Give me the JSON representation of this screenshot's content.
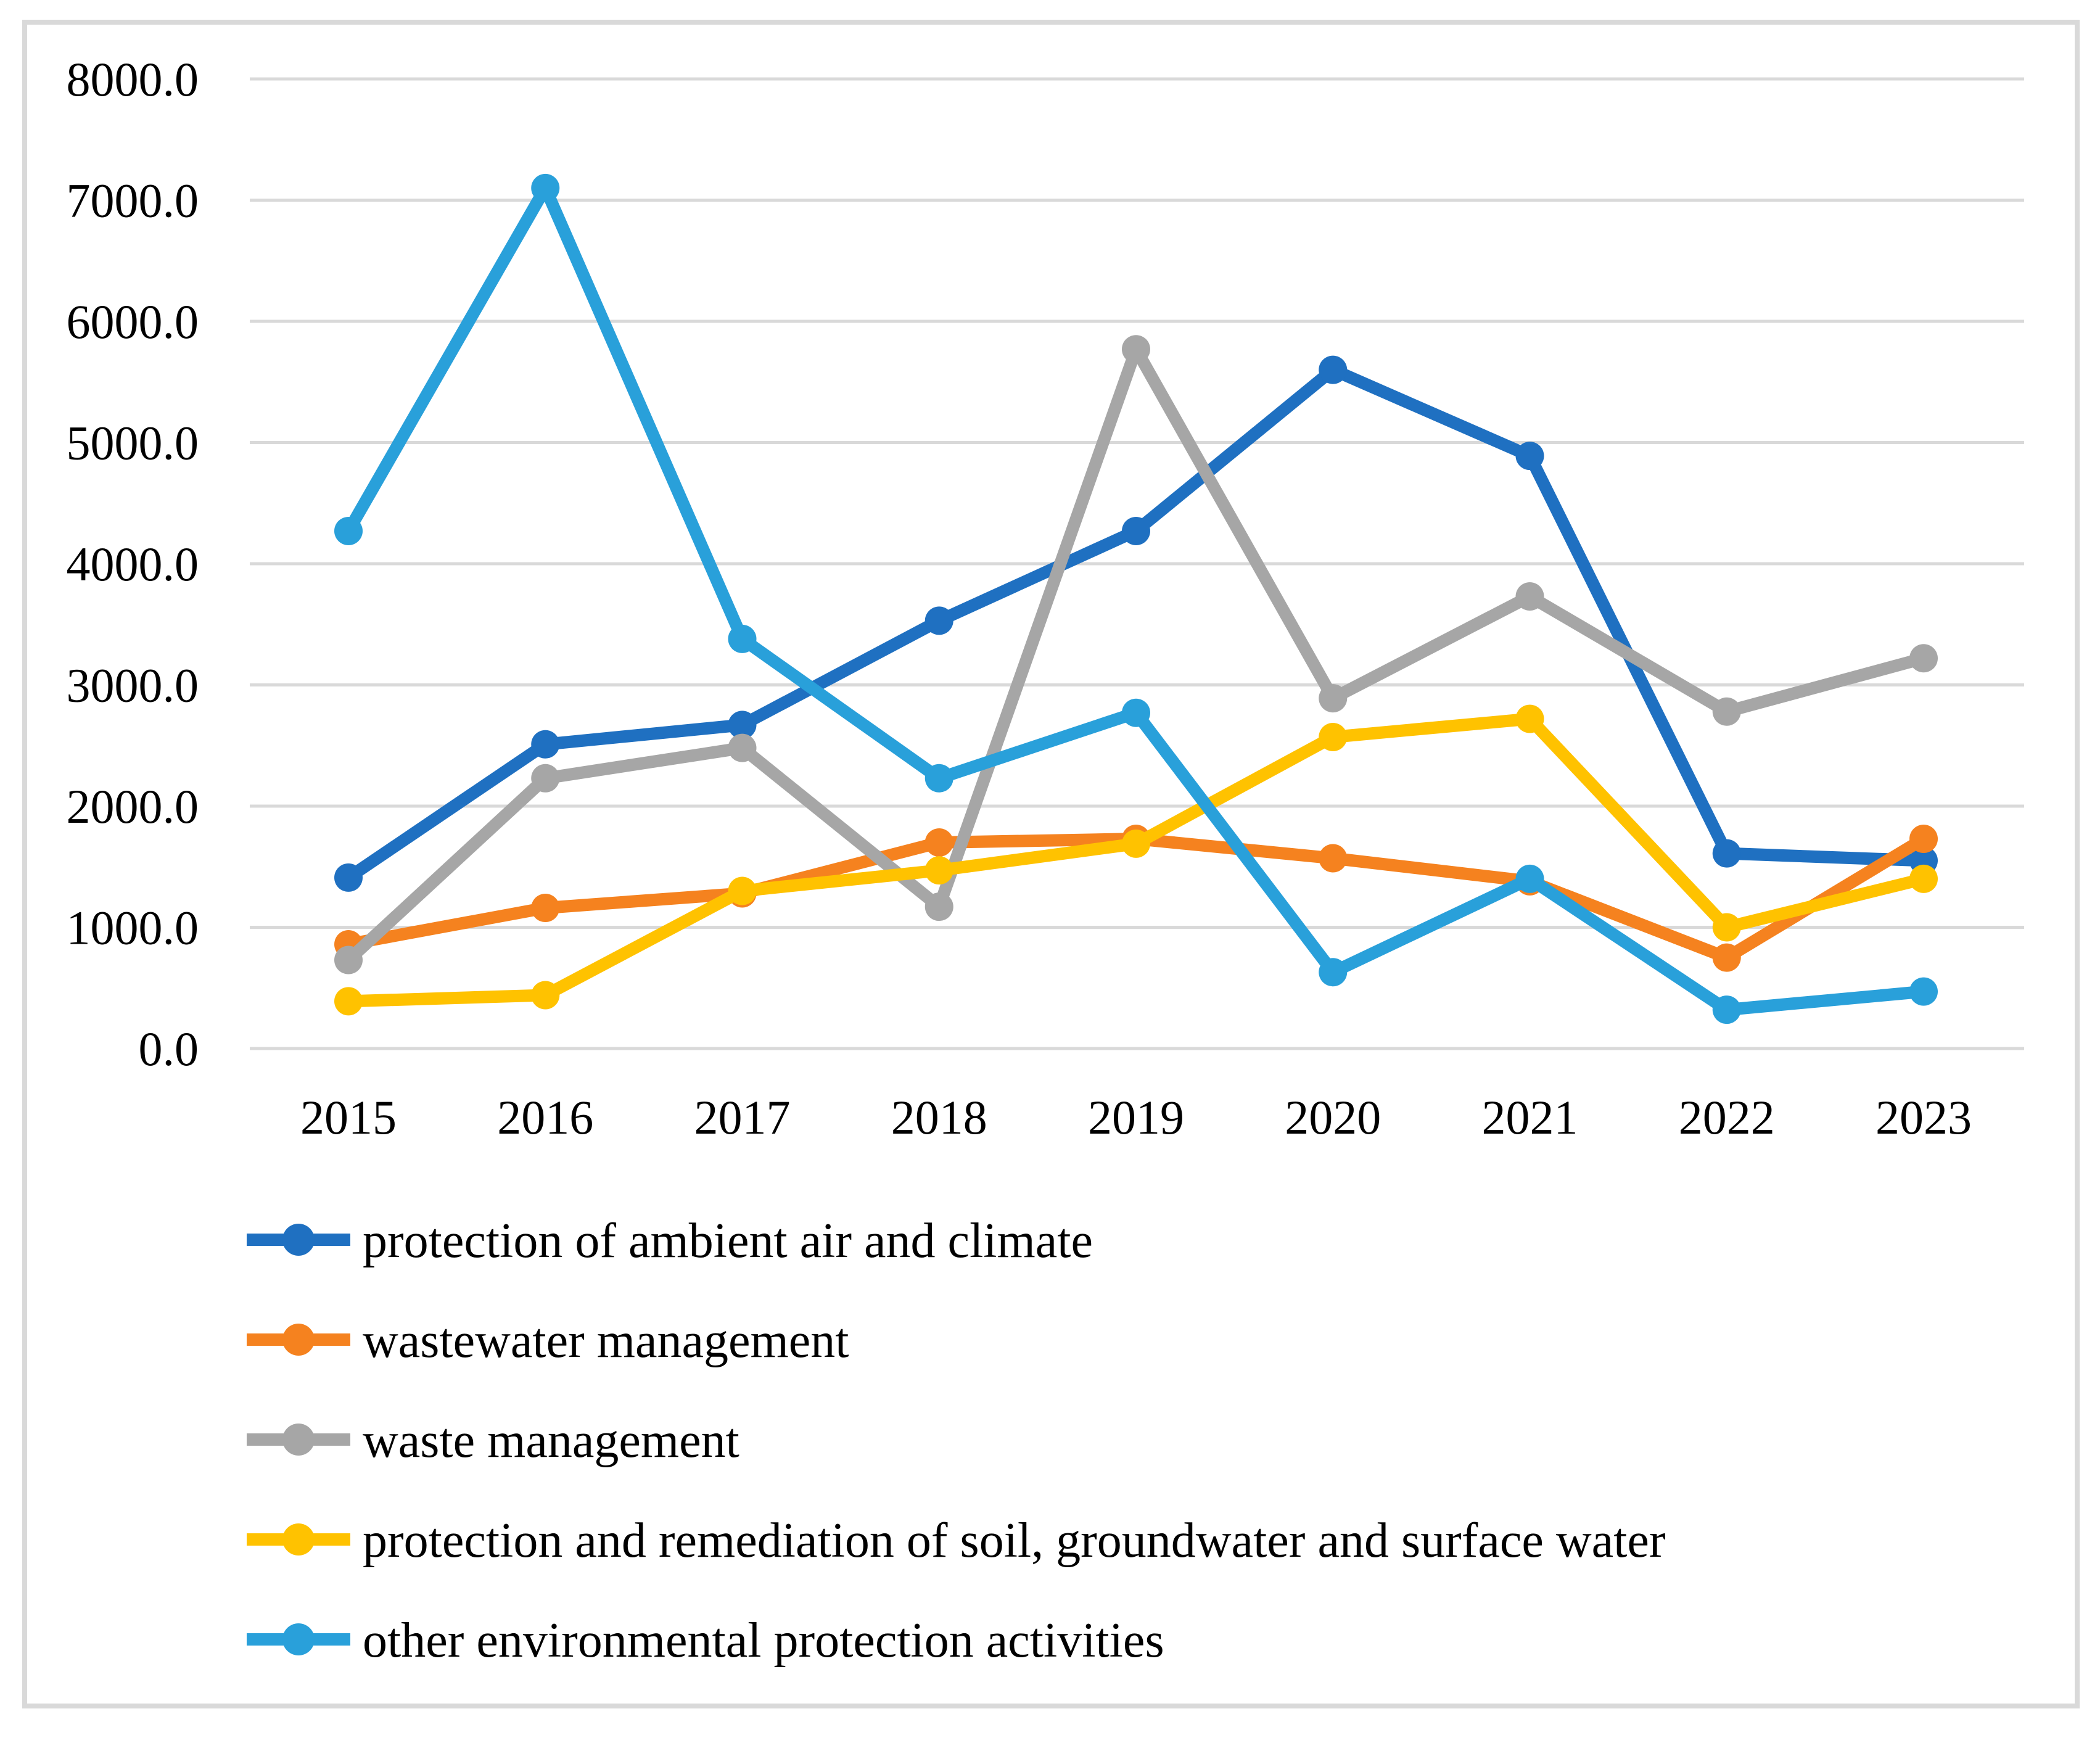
{
  "chart_data": {
    "type": "line",
    "title": "",
    "xlabel": "",
    "ylabel": "",
    "categories": [
      "2015",
      "2016",
      "2017",
      "2018",
      "2019",
      "2020",
      "2021",
      "2022",
      "2023"
    ],
    "series": [
      {
        "name": "protection of ambient air and climate",
        "slug": "ambient-air-and-climate",
        "color": "#1F70C1",
        "values": [
          1410,
          2510,
          2670,
          3530,
          4270,
          5600,
          4890,
          1610,
          1550
        ]
      },
      {
        "name": "wastewater management",
        "slug": "wastewater-management",
        "color": "#F5821F",
        "values": [
          860,
          1160,
          1280,
          1700,
          1730,
          1570,
          1380,
          750,
          1730
        ]
      },
      {
        "name": "waste management",
        "slug": "waste-management",
        "color": "#A6A6A6",
        "values": [
          730,
          2230,
          2480,
          1170,
          5770,
          2890,
          3730,
          2780,
          3220
        ]
      },
      {
        "name": "protection and remediation of soil, groundwater and surface water",
        "slug": "soil-groundwater-surface-water",
        "color": "#FFC200",
        "values": [
          390,
          440,
          1300,
          1470,
          1690,
          2570,
          2720,
          1000,
          1400
        ]
      },
      {
        "name": "other environmental protection activities",
        "slug": "other-environmental-protection-activities",
        "color": "#29A0DA",
        "values": [
          4270,
          7100,
          3380,
          2230,
          2770,
          630,
          1400,
          320,
          470
        ]
      }
    ],
    "ylim": [
      0,
      8000
    ],
    "ytick_step": 1000,
    "ytick_labels": [
      "8000.0",
      "7000.0",
      "6000.0",
      "5000.0",
      "4000.0",
      "3000.0",
      "2000.0",
      "1000.0",
      "0.0"
    ],
    "grid": true,
    "legend_position": "bottom-left"
  },
  "styles": {
    "grid_color": "#D9D9D9",
    "frame_border_color": "#D9D9D9",
    "text_color": "#000000",
    "background_color": "#FFFFFF"
  }
}
